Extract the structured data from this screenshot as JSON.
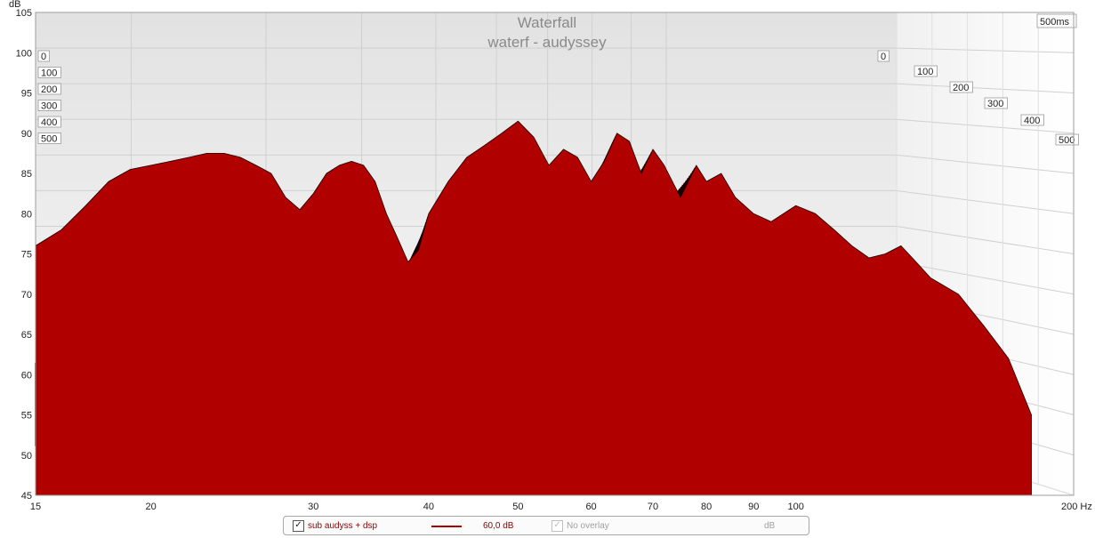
{
  "chart_data": {
    "type": "area",
    "title": "Waterfall",
    "subtitle": "waterf - audyssey",
    "ylabel": "dB",
    "xunit": "Hz",
    "ylim": [
      45,
      105
    ],
    "xlim": [
      15,
      200
    ],
    "xscale": "log",
    "yticks": [
      45,
      50,
      55,
      60,
      65,
      70,
      75,
      80,
      85,
      90,
      95,
      100,
      105
    ],
    "xtick_labels": [
      "15",
      "20",
      "30",
      "40",
      "50",
      "60",
      "70",
      "80",
      "90",
      "100",
      "200 Hz"
    ],
    "xticks": [
      15,
      20,
      30,
      40,
      50,
      60,
      70,
      80,
      90,
      100,
      200
    ],
    "time_axis_label": "500ms",
    "time_ticks_left": [
      "0",
      "100",
      "200",
      "300",
      "400",
      "500"
    ],
    "time_ticks_right": [
      "0",
      "100",
      "200",
      "300",
      "400",
      "500"
    ],
    "front_slice": {
      "time_ms": 0,
      "x": [
        15,
        16,
        17,
        18,
        19,
        20,
        21,
        22,
        23,
        24,
        25,
        26,
        27,
        28,
        29,
        30,
        31,
        32,
        33,
        34,
        35,
        36,
        37,
        38,
        39,
        40,
        42,
        44,
        46,
        48,
        50,
        52,
        54,
        56,
        58,
        60,
        62,
        64,
        66,
        68,
        70,
        72,
        75,
        78,
        80,
        83,
        86,
        90,
        94,
        100,
        105,
        110,
        115,
        120,
        125,
        130,
        135,
        140,
        150,
        160,
        170,
        180
      ],
      "y": [
        76,
        78,
        81,
        84,
        85.5,
        86,
        86.5,
        87,
        87.5,
        87.5,
        87,
        86,
        85,
        82,
        80.5,
        82.5,
        85,
        86,
        86.5,
        86,
        84,
        80,
        77,
        74,
        75.5,
        80,
        84,
        87,
        88.5,
        90,
        91.5,
        89.5,
        86,
        88,
        87,
        84,
        86.5,
        90,
        89,
        85,
        88,
        86,
        82,
        86,
        84,
        85,
        82,
        80,
        79,
        81,
        80,
        78,
        76,
        74.5,
        75,
        76,
        74,
        72,
        70,
        66,
        62,
        55
      ]
    },
    "slices": 60,
    "series": [
      {
        "name": "sub audyss + dsp",
        "color": "#b00000"
      }
    ]
  },
  "legend": {
    "series_label": "sub audyss + dsp",
    "series_checked": "✓",
    "smoothing_value": "60,0 dB",
    "overlay_checked": "✓",
    "overlay_label": "No overlay",
    "unit_label": "dB"
  },
  "colors": {
    "fill": "#b00000",
    "slice_line": "#1a0000",
    "grid": "#d0d0d0",
    "back_wall_top": "#e4e4e4",
    "back_wall_bottom": "#fafafa",
    "series_text": "#8b0000",
    "dim_text": "#a0a0a0"
  }
}
